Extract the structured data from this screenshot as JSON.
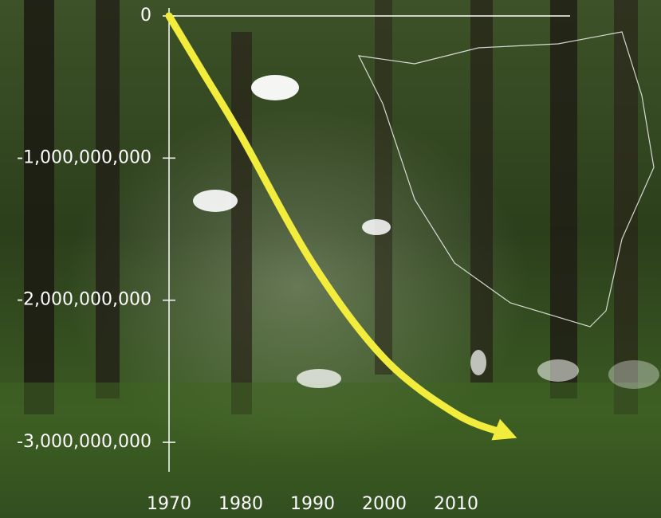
{
  "chart_data": {
    "type": "line",
    "x": [
      1970,
      1975,
      1980,
      1990,
      2000,
      2010,
      2017
    ],
    "series": [
      {
        "color": "#f2ec3c",
        "values": [
          0,
          -420000000,
          -840000000,
          -1740000000,
          -2410000000,
          -2800000000,
          -2940000000
        ]
      }
    ],
    "xlim": [
      1970,
      2020
    ],
    "xticks": [
      1970,
      1980,
      1990,
      2000,
      2010
    ],
    "ylim": [
      -3200000000,
      0
    ],
    "yticks": [
      0,
      {
        "value": -1000000000,
        "label": "-1,000,000,000"
      },
      {
        "value": -2000000000,
        "label": "-2,000,000,000"
      },
      {
        "value": -3000000000,
        "label": "-3,000,000,000"
      }
    ]
  }
}
